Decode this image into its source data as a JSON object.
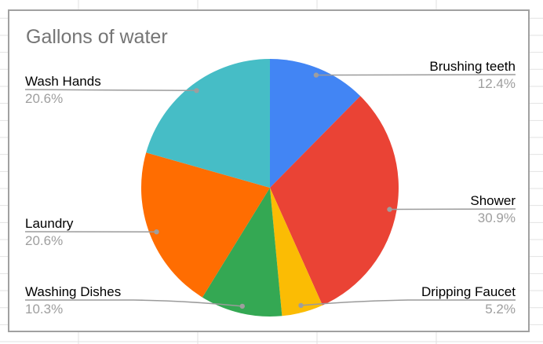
{
  "chart_data": {
    "type": "pie",
    "title": "Gallons of water",
    "direction": "clockwise",
    "start": "top",
    "legend_position": "outside-callout-labels",
    "slices": [
      {
        "label": "Brushing teeth",
        "value_pct": 12.4,
        "pct_label": "12.4%",
        "color": "#4285F4"
      },
      {
        "label": "Shower",
        "value_pct": 30.9,
        "pct_label": "30.9%",
        "color": "#EA4335"
      },
      {
        "label": "Dripping Faucet",
        "value_pct": 5.2,
        "pct_label": "5.2%",
        "color": "#FBBC04"
      },
      {
        "label": "Washing Dishes",
        "value_pct": 10.3,
        "pct_label": "10.3%",
        "color": "#34A853"
      },
      {
        "label": "Laundry",
        "value_pct": 20.6,
        "pct_label": "20.6%",
        "color": "#FF6D01"
      },
      {
        "label": "Wash Hands",
        "value_pct": 20.6,
        "pct_label": "20.6%",
        "color": "#46BDC6"
      }
    ]
  },
  "colors": {
    "title_text": "#757575",
    "slice_name_text": "#000000",
    "slice_pct_text": "#9e9e9e",
    "leader_line": "#9b9b9b",
    "leader_dot": "#9e9e9e",
    "chart_border": "#a1a1a1",
    "chart_background": "#ffffff",
    "grid_line": "#e2e2e2"
  }
}
